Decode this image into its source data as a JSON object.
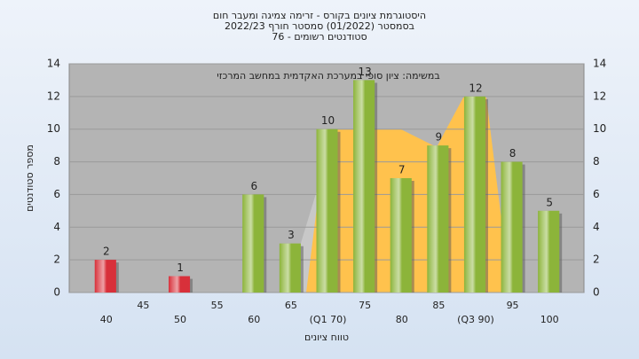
{
  "chart_data": {
    "type": "bar",
    "title": "היסטוגרמת ציונים בקורס - זרימה צמיגה ומעבר חום",
    "subtitle": "בסמסטר  (01/2022)  סמסטר חורף 2022/23",
    "subtitle2": "סטודנטים רשומים - 76",
    "annotation": "במשימה: ציון סופי במערכת האקדמית במחשב המרכזי",
    "x_label": "טווח ציונים",
    "y_label": "מספר סטודנטים",
    "categories": [
      "40",
      "45",
      "50",
      "55",
      "60",
      "65",
      "(Q1 70)",
      "75",
      "80",
      "85",
      "(Q3 90)",
      "95",
      "100"
    ],
    "values": [
      2,
      null,
      1,
      null,
      6,
      3,
      10,
      13,
      7,
      9,
      12,
      8,
      5
    ],
    "colors": [
      "#d8303a",
      "#d8303a",
      "#d8303a",
      "#8cb43a",
      "#8cb43a",
      "#8cb43a",
      "#8cb43a",
      "#8cb43a",
      "#8cb43a",
      "#8cb43a",
      "#8cb43a",
      "#8cb43a",
      "#8cb43a"
    ],
    "ylim": [
      0,
      14
    ],
    "yticks": [
      0,
      2,
      4,
      6,
      8,
      10,
      12,
      14
    ],
    "grid": true
  }
}
